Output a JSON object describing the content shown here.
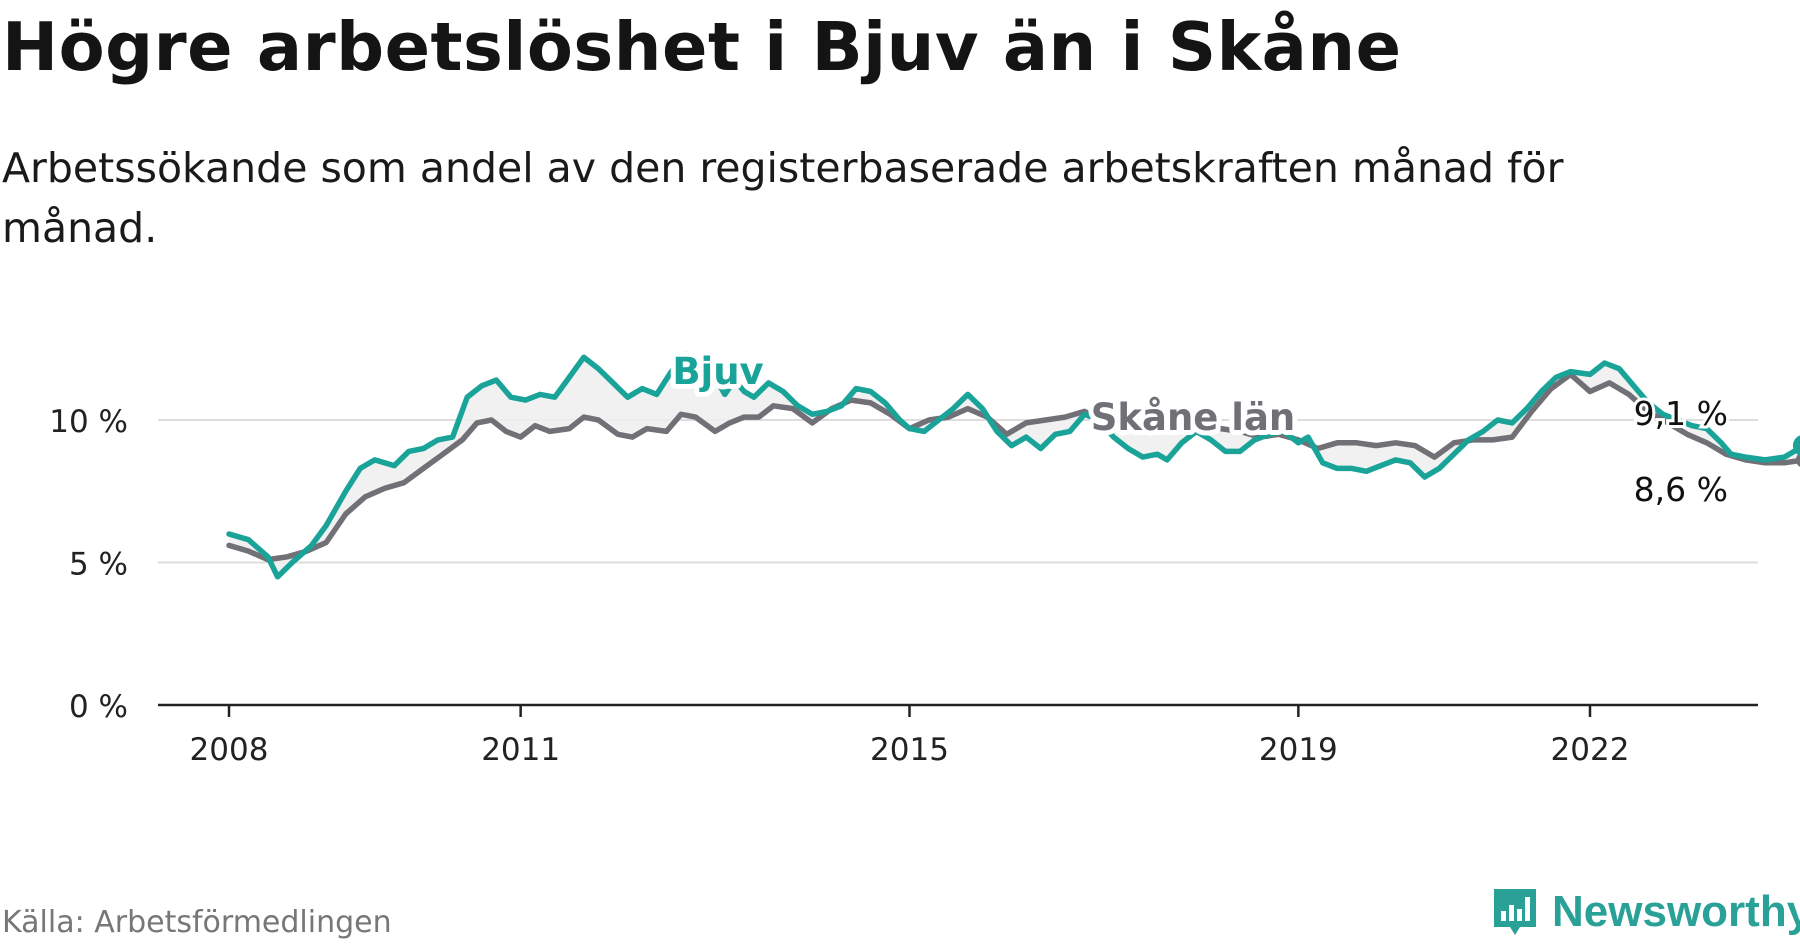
{
  "header": {
    "title": "Högre arbetslöshet i Bjuv än i Skåne",
    "subtitle": "Arbetssökande som andel av den registerbaserade arbetskraften månad för månad."
  },
  "footer": {
    "source": "Källa: Arbetsförmedlingen",
    "brand": "Newsworthy",
    "brand_icon": "bar-chart-icon",
    "brand_color": "#2aa197"
  },
  "chart_data": {
    "type": "line",
    "title": "Högre arbetslöshet i Bjuv än i Skåne",
    "xlabel": "",
    "ylabel": "",
    "xlim": [
      2008.0,
      2023.8
    ],
    "ylim": [
      0,
      10
    ],
    "y_ticks": [
      0,
      5,
      10
    ],
    "y_tick_labels": [
      "0 %",
      "5 %",
      "10 %"
    ],
    "x_ticks": [
      2008,
      2011,
      2015,
      2019,
      2022
    ],
    "x_tick_labels": [
      "2008",
      "2011",
      "2015",
      "2019",
      "2022"
    ],
    "grid": true,
    "series": [
      {
        "name": "Bjuv",
        "color": "#1aa398",
        "end_label": "9,1 %",
        "points": [
          [
            2008.0,
            6.0
          ],
          [
            2008.2,
            5.8
          ],
          [
            2008.4,
            5.2
          ],
          [
            2008.5,
            4.5
          ],
          [
            2008.65,
            5.0
          ],
          [
            2008.85,
            5.6
          ],
          [
            2009.0,
            6.3
          ],
          [
            2009.2,
            7.5
          ],
          [
            2009.35,
            8.3
          ],
          [
            2009.5,
            8.6
          ],
          [
            2009.7,
            8.4
          ],
          [
            2009.85,
            8.9
          ],
          [
            2010.0,
            9.0
          ],
          [
            2010.15,
            9.3
          ],
          [
            2010.3,
            9.4
          ],
          [
            2010.45,
            10.8
          ],
          [
            2010.6,
            11.2
          ],
          [
            2010.75,
            11.4
          ],
          [
            2010.9,
            10.8
          ],
          [
            2011.05,
            10.7
          ],
          [
            2011.2,
            10.9
          ],
          [
            2011.35,
            10.8
          ],
          [
            2011.5,
            11.5
          ],
          [
            2011.65,
            12.2
          ],
          [
            2011.8,
            11.8
          ],
          [
            2011.95,
            11.3
          ],
          [
            2012.1,
            10.8
          ],
          [
            2012.25,
            11.1
          ],
          [
            2012.4,
            10.9
          ],
          [
            2012.55,
            11.7
          ],
          [
            2012.7,
            12.3
          ],
          [
            2012.85,
            11.8
          ],
          [
            2013.0,
            11.5
          ],
          [
            2013.1,
            10.9
          ],
          [
            2013.2,
            11.4
          ],
          [
            2013.3,
            11.0
          ],
          [
            2013.4,
            10.8
          ],
          [
            2013.55,
            11.3
          ],
          [
            2013.7,
            11.0
          ],
          [
            2013.85,
            10.5
          ],
          [
            2014.0,
            10.2
          ],
          [
            2014.15,
            10.3
          ],
          [
            2014.3,
            10.5
          ],
          [
            2014.45,
            11.1
          ],
          [
            2014.6,
            11.0
          ],
          [
            2014.75,
            10.6
          ],
          [
            2014.9,
            10.0
          ],
          [
            2015.0,
            9.7
          ],
          [
            2015.15,
            9.6
          ],
          [
            2015.3,
            10.0
          ],
          [
            2015.45,
            10.4
          ],
          [
            2015.6,
            10.9
          ],
          [
            2015.75,
            10.4
          ],
          [
            2015.9,
            9.6
          ],
          [
            2016.05,
            9.1
          ],
          [
            2016.2,
            9.4
          ],
          [
            2016.35,
            9.0
          ],
          [
            2016.5,
            9.5
          ],
          [
            2016.65,
            9.6
          ],
          [
            2016.8,
            10.2
          ],
          [
            2016.95,
            10.0
          ],
          [
            2017.1,
            9.4
          ],
          [
            2017.25,
            9.0
          ],
          [
            2017.4,
            8.7
          ],
          [
            2017.55,
            8.8
          ],
          [
            2017.65,
            8.6
          ],
          [
            2017.8,
            9.2
          ],
          [
            2017.95,
            9.6
          ],
          [
            2018.1,
            9.3
          ],
          [
            2018.25,
            8.9
          ],
          [
            2018.4,
            8.9
          ],
          [
            2018.55,
            9.3
          ],
          [
            2018.7,
            9.5
          ],
          [
            2018.85,
            9.6
          ],
          [
            2019.0,
            9.2
          ],
          [
            2019.1,
            9.4
          ],
          [
            2019.25,
            8.5
          ],
          [
            2019.4,
            8.3
          ],
          [
            2019.55,
            8.3
          ],
          [
            2019.7,
            8.2
          ],
          [
            2019.85,
            8.4
          ],
          [
            2020.0,
            8.6
          ],
          [
            2020.15,
            8.5
          ],
          [
            2020.3,
            8.0
          ],
          [
            2020.45,
            8.3
          ],
          [
            2020.6,
            8.8
          ],
          [
            2020.75,
            9.3
          ],
          [
            2020.9,
            9.6
          ],
          [
            2021.05,
            10.0
          ],
          [
            2021.2,
            9.9
          ],
          [
            2021.35,
            10.4
          ],
          [
            2021.5,
            11.0
          ],
          [
            2021.65,
            11.5
          ],
          [
            2021.8,
            11.7
          ],
          [
            2022.0,
            11.6
          ],
          [
            2022.15,
            12.0
          ],
          [
            2022.3,
            11.8
          ],
          [
            2022.45,
            11.2
          ],
          [
            2022.6,
            10.6
          ],
          [
            2022.75,
            10.2
          ],
          [
            2022.9,
            10.0
          ],
          [
            2023.05,
            9.8
          ],
          [
            2023.2,
            9.7
          ],
          [
            2023.35,
            9.2
          ],
          [
            2023.45,
            8.8
          ],
          [
            2023.6,
            8.7
          ],
          [
            2023.8,
            8.6
          ],
          [
            2024.0,
            8.7
          ],
          [
            2024.1,
            8.9
          ],
          [
            2024.2,
            9.1
          ]
        ]
      },
      {
        "name": "Skåne län",
        "color": "#727077",
        "end_label": "8,6 %",
        "points": [
          [
            2008.0,
            5.6
          ],
          [
            2008.2,
            5.4
          ],
          [
            2008.4,
            5.1
          ],
          [
            2008.6,
            5.2
          ],
          [
            2008.8,
            5.4
          ],
          [
            2009.0,
            5.7
          ],
          [
            2009.2,
            6.7
          ],
          [
            2009.4,
            7.3
          ],
          [
            2009.6,
            7.6
          ],
          [
            2009.8,
            7.8
          ],
          [
            2010.0,
            8.3
          ],
          [
            2010.2,
            8.8
          ],
          [
            2010.4,
            9.3
          ],
          [
            2010.55,
            9.9
          ],
          [
            2010.7,
            10.0
          ],
          [
            2010.85,
            9.6
          ],
          [
            2011.0,
            9.4
          ],
          [
            2011.15,
            9.8
          ],
          [
            2011.3,
            9.6
          ],
          [
            2011.5,
            9.7
          ],
          [
            2011.65,
            10.1
          ],
          [
            2011.8,
            10.0
          ],
          [
            2012.0,
            9.5
          ],
          [
            2012.15,
            9.4
          ],
          [
            2012.3,
            9.7
          ],
          [
            2012.5,
            9.6
          ],
          [
            2012.65,
            10.2
          ],
          [
            2012.8,
            10.1
          ],
          [
            2013.0,
            9.6
          ],
          [
            2013.15,
            9.9
          ],
          [
            2013.3,
            10.1
          ],
          [
            2013.45,
            10.1
          ],
          [
            2013.6,
            10.5
          ],
          [
            2013.8,
            10.4
          ],
          [
            2014.0,
            9.9
          ],
          [
            2014.2,
            10.4
          ],
          [
            2014.4,
            10.7
          ],
          [
            2014.6,
            10.6
          ],
          [
            2014.8,
            10.2
          ],
          [
            2015.0,
            9.7
          ],
          [
            2015.2,
            10.0
          ],
          [
            2015.4,
            10.1
          ],
          [
            2015.6,
            10.4
          ],
          [
            2015.8,
            10.1
          ],
          [
            2016.0,
            9.5
          ],
          [
            2016.2,
            9.9
          ],
          [
            2016.4,
            10.0
          ],
          [
            2016.6,
            10.1
          ],
          [
            2016.8,
            10.3
          ],
          [
            2017.0,
            9.9
          ],
          [
            2017.2,
            9.7
          ],
          [
            2017.4,
            9.8
          ],
          [
            2017.6,
            9.7
          ],
          [
            2017.8,
            9.8
          ],
          [
            2018.0,
            9.9
          ],
          [
            2018.2,
            9.7
          ],
          [
            2018.4,
            9.6
          ],
          [
            2018.6,
            9.4
          ],
          [
            2018.8,
            9.5
          ],
          [
            2019.0,
            9.3
          ],
          [
            2019.2,
            9.0
          ],
          [
            2019.4,
            9.2
          ],
          [
            2019.6,
            9.2
          ],
          [
            2019.8,
            9.1
          ],
          [
            2020.0,
            9.2
          ],
          [
            2020.2,
            9.1
          ],
          [
            2020.4,
            8.7
          ],
          [
            2020.6,
            9.2
          ],
          [
            2020.8,
            9.3
          ],
          [
            2021.0,
            9.3
          ],
          [
            2021.2,
            9.4
          ],
          [
            2021.4,
            10.3
          ],
          [
            2021.6,
            11.1
          ],
          [
            2021.8,
            11.6
          ],
          [
            2022.0,
            11.0
          ],
          [
            2022.2,
            11.3
          ],
          [
            2022.4,
            10.9
          ],
          [
            2022.6,
            10.3
          ],
          [
            2022.8,
            9.9
          ],
          [
            2023.0,
            9.5
          ],
          [
            2023.2,
            9.2
          ],
          [
            2023.4,
            8.8
          ],
          [
            2023.6,
            8.6
          ],
          [
            2023.8,
            8.5
          ],
          [
            2024.0,
            8.5
          ],
          [
            2024.2,
            8.6
          ]
        ]
      }
    ],
    "series_labels": [
      {
        "name": "Bjuv",
        "text": "Bjuv"
      },
      {
        "name": "Skåne län",
        "text": "Skåne län"
      }
    ],
    "annotations": [
      "9,1 %",
      "8,6 %"
    ]
  }
}
